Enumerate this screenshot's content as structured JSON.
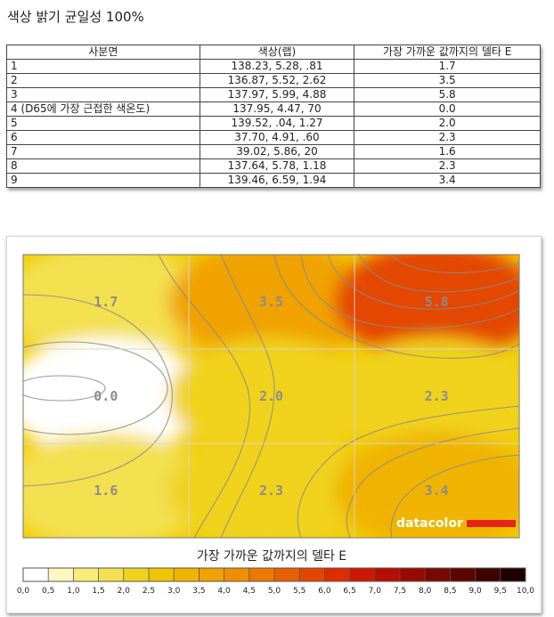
{
  "page": {
    "title": "색상 밝기 균일성 100%"
  },
  "table": {
    "headers": [
      "사분면",
      "색상(랩)",
      "가장 가까운 값까지의 델타 E"
    ],
    "rows": [
      {
        "zone": "1",
        "lab": "138.23,  5.28,  .81",
        "de": "1.7"
      },
      {
        "zone": "2",
        "lab": "136.87,  5.52,  2.62",
        "de": "3.5"
      },
      {
        "zone": "3",
        "lab": "137.97,  5.99,  4.88",
        "de": "5.8"
      },
      {
        "zone": "4 (D65에 가장 근접한 색온도)",
        "lab": "137.95,  4.47,  70",
        "de": "0.0"
      },
      {
        "zone": "5",
        "lab": "139.52,  .04,  1.27",
        "de": "2.0"
      },
      {
        "zone": "6",
        "lab": "37.70,  4.91,  .60",
        "de": "2.3"
      },
      {
        "zone": "7",
        "lab": "39.02,  5.86,  20",
        "de": "1.6"
      },
      {
        "zone": "8",
        "lab": "137.64,  5.78,  1.18",
        "de": "2.3"
      },
      {
        "zone": "9",
        "lab": "139.46,  6.59,  1.94",
        "de": "3.4"
      }
    ]
  },
  "chart_data": {
    "type": "heatmap",
    "title": "가장 가까운 값까지의 델타 E",
    "grid": {
      "rows": 3,
      "cols": 3,
      "values": [
        [
          1.7,
          3.5,
          5.8
        ],
        [
          0.0,
          2.0,
          2.3
        ],
        [
          1.6,
          2.3,
          3.4
        ]
      ],
      "labels": [
        [
          "1.7",
          "3.5",
          "5.8"
        ],
        [
          "0.0",
          "2.0",
          "2.3"
        ],
        [
          "1.6",
          "2.3",
          "3.4"
        ]
      ]
    },
    "scale": {
      "min": 0,
      "max": 10,
      "ticks": [
        "0,0",
        "0,5",
        "1,0",
        "1,5",
        "2,0",
        "2,5",
        "3,0",
        "3,5",
        "4,0",
        "4,5",
        "5,0",
        "5,5",
        "6,0",
        "6,5",
        "7,0",
        "7,5",
        "8,0",
        "8,5",
        "9,0",
        "9,5",
        "10,0"
      ],
      "colors": [
        "#ffffff",
        "#fdf6c0",
        "#f8ec7a",
        "#f3e050",
        "#f0d21e",
        "#f0c400",
        "#f0b400",
        "#f0a200",
        "#ee8e00",
        "#eb7800",
        "#e86000",
        "#e44600",
        "#de2c00",
        "#cc1800",
        "#b40f00",
        "#980a00",
        "#7a0700",
        "#5c0500",
        "#3e0300",
        "#1e0000"
      ]
    },
    "legend_position": "bottom",
    "grid_lines": true
  },
  "branding": {
    "logo_text": "datacolor",
    "accent": "#e8221b"
  }
}
